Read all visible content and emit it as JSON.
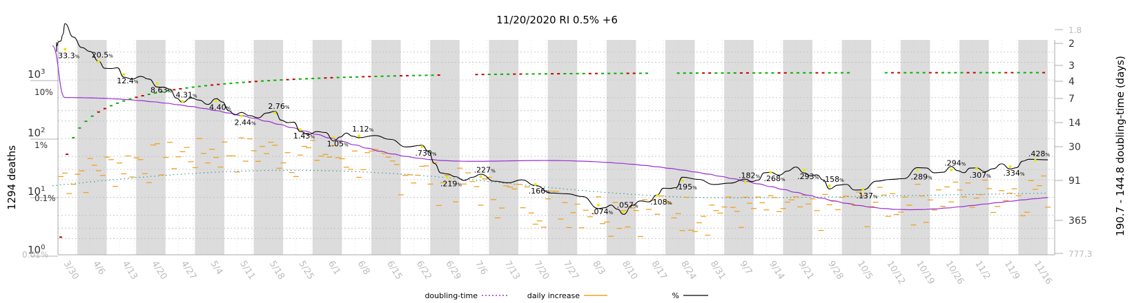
{
  "title": "11/20/2020 RI 0.5% +6",
  "left_axis_label": "1294 deaths",
  "right_axis_label": "190.7 - 144.8 doubling-time (days)",
  "colors": {
    "percent_line": "#000000",
    "cumulative_line": "#9a2fd1",
    "doubling_dots": "#3a9a9a",
    "daily_increase": "#f0a020",
    "marker_up": "#00b000",
    "marker_down": "#c00000",
    "marker_label": "#e8e800",
    "band": "#dcdcdc"
  },
  "chart_data": {
    "type": "line",
    "x_labels": [
      "3/30",
      "4/6",
      "4/13",
      "4/20",
      "4/27",
      "5/4",
      "5/11",
      "5/18",
      "5/25",
      "6/1",
      "6/8",
      "6/15",
      "6/22",
      "6/29",
      "7/6",
      "7/13",
      "7/20",
      "7/27",
      "8/3",
      "8/10",
      "8/17",
      "8/24",
      "8/31",
      "9/7",
      "9/14",
      "9/21",
      "9/28",
      "10/5",
      "10/12",
      "10/19",
      "10/26",
      "11/2",
      "11/9",
      "11/16"
    ],
    "left_ticks_count": [
      "10^0",
      "10^1",
      "10^2",
      "10^3"
    ],
    "left_ticks_pct": [
      "0.01%",
      "0.1%",
      "1%",
      "10%"
    ],
    "right_ticks": [
      "1.8",
      "2",
      "3",
      "4",
      "7",
      "14",
      "30",
      "91",
      "365",
      "777.3"
    ],
    "grid": true,
    "shading": "alternate weeks",
    "percent_labels": [
      {
        "date": "3/30",
        "text": "33.3",
        "unit": "%",
        "value": 33.3
      },
      {
        "date": "4/6",
        "text": "20.5",
        "unit": "%",
        "value": 20.5
      },
      {
        "date": "4/13",
        "text": "12.4",
        "unit": "%",
        "value": 12.4
      },
      {
        "date": "4/20",
        "text": "8.63",
        "unit": "%",
        "value": 8.63
      },
      {
        "date": "4/27",
        "text": "4.31",
        "unit": "%",
        "value": 4.31
      },
      {
        "date": "5/4",
        "text": "4.40",
        "unit": "%",
        "value": 4.4
      },
      {
        "date": "5/11",
        "text": "2.44",
        "unit": "%",
        "value": 2.44
      },
      {
        "date": "5/18",
        "text": "2.76",
        "unit": "%",
        "value": 2.76
      },
      {
        "date": "5/25",
        "text": "1.43",
        "unit": "%",
        "value": 1.43
      },
      {
        "date": "6/1",
        "text": "1.05",
        "unit": "%",
        "value": 1.05
      },
      {
        "date": "6/8",
        "text": "1.12",
        "unit": "%",
        "value": 1.12
      },
      {
        "date": "6/22",
        "text": ".730",
        "unit": "%",
        "value": 0.73
      },
      {
        "date": "6/29",
        "text": ".219",
        "unit": "%",
        "value": 0.219
      },
      {
        "date": "7/6",
        "text": ".227",
        "unit": "%",
        "value": 0.227
      },
      {
        "date": "7/20",
        "text": ".166",
        "unit": "%",
        "value": 0.166
      },
      {
        "date": "8/3",
        "text": ".074",
        "unit": "%",
        "value": 0.074
      },
      {
        "date": "8/10",
        "text": ".057",
        "unit": "%",
        "value": 0.057
      },
      {
        "date": "8/17",
        "text": ".108",
        "unit": "%",
        "value": 0.108
      },
      {
        "date": "8/24",
        "text": ".195",
        "unit": "%",
        "value": 0.195
      },
      {
        "date": "9/7",
        "text": ".182",
        "unit": "%",
        "value": 0.182
      },
      {
        "date": "9/14",
        "text": ".268",
        "unit": "%",
        "value": 0.268
      },
      {
        "date": "9/21",
        "text": ".293",
        "unit": "%",
        "value": 0.293
      },
      {
        "date": "9/28",
        "text": ".158",
        "unit": "%",
        "value": 0.158
      },
      {
        "date": "10/5",
        "text": ".137",
        "unit": "%",
        "value": 0.137
      },
      {
        "date": "10/19",
        "text": ".289",
        "unit": "%",
        "value": 0.289
      },
      {
        "date": "10/26",
        "text": ".294",
        "unit": "%",
        "value": 0.294
      },
      {
        "date": "11/2",
        "text": ".307",
        "unit": "%",
        "value": 0.307
      },
      {
        "date": "11/9",
        "text": ".334",
        "unit": "%",
        "value": 0.334
      },
      {
        "date": "11/16",
        "text": ".428",
        "unit": "%",
        "value": 0.428
      }
    ],
    "series": [
      {
        "name": "doubling-time",
        "style": "dotted"
      },
      {
        "name": "daily increase",
        "style": "dash-marks"
      },
      {
        "name": "%",
        "style": "solid"
      }
    ],
    "legend_position": "bottom-center"
  }
}
